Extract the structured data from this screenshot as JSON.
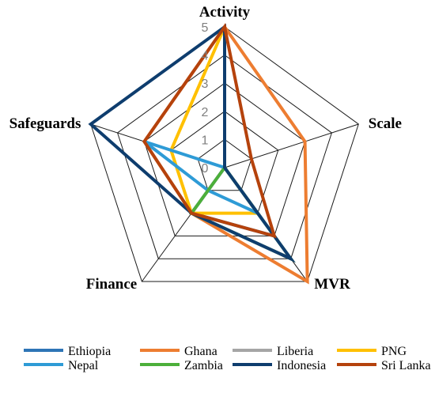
{
  "chart_data": {
    "type": "radar",
    "axes": [
      "Activity",
      "Scale",
      "MVR",
      "Finance",
      "Safeguards"
    ],
    "ticks": [
      "0",
      "1",
      "2",
      "3",
      "4",
      "5"
    ],
    "range": [
      0,
      5
    ],
    "grid": true,
    "legend_position": "bottom",
    "series": [
      {
        "name": "Ethiopia",
        "color": "#2E75B6",
        "values": [
          5,
          0,
          3,
          2,
          0
        ]
      },
      {
        "name": "Ghana",
        "color": "#ED7D31",
        "values": [
          5,
          3,
          5,
          2,
          3
        ]
      },
      {
        "name": "Liberia",
        "color": "#A5A5A5",
        "values": [
          5,
          0,
          0,
          2,
          0
        ]
      },
      {
        "name": "PNG",
        "color": "#FFC000",
        "values": [
          5,
          0,
          2,
          2,
          2
        ]
      },
      {
        "name": "Nepal",
        "color": "#2E9BD6",
        "values": [
          0,
          0,
          2,
          1,
          3
        ]
      },
      {
        "name": "Zambia",
        "color": "#4CAF3A",
        "values": [
          0,
          0,
          4,
          2,
          0
        ]
      },
      {
        "name": "Indonesia",
        "color": "#0E3D6E",
        "values": [
          5,
          0,
          4,
          2,
          5
        ]
      },
      {
        "name": "Sri Lanka",
        "color": "#B5420C",
        "values": [
          5,
          1,
          3,
          2,
          3
        ]
      }
    ]
  }
}
